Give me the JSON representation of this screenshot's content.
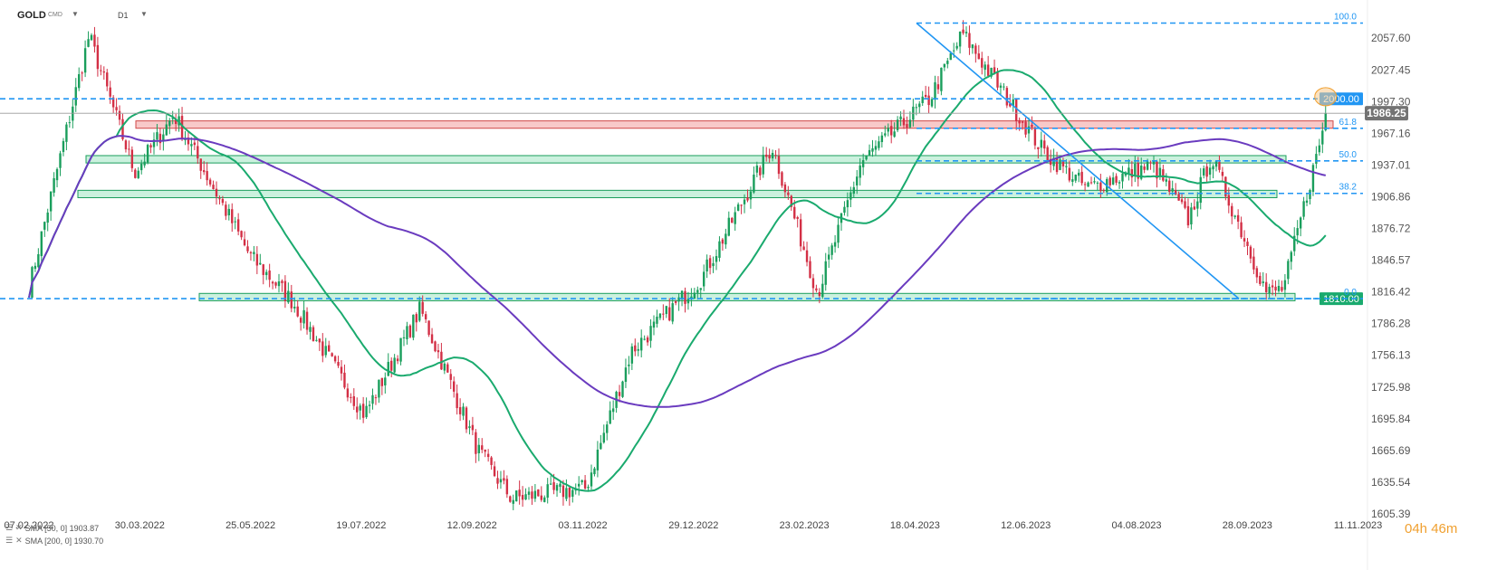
{
  "header": {
    "symbol": "GOLD",
    "symbol_type": "CMD",
    "timeframe": "D1"
  },
  "icons": {
    "symbol_dropdown": "chevron-down-icon",
    "timeframe_dropdown": "chevron-down-icon",
    "indicator_settings": "menu-icon",
    "indicator_remove": "close-icon"
  },
  "indicators": [
    {
      "label": "SMA [50, 0] 1903.87",
      "color": "#1aaa6e"
    },
    {
      "label": "SMA [200, 0] 1930.70",
      "color": "#6a3bbf"
    }
  ],
  "countdown": {
    "hours": "04h",
    "minutes": "46m"
  },
  "colors": {
    "bull": "#1a9e5c",
    "bear": "#d32f45",
    "fib_line": "#2196f3",
    "sma50": "#1aaa6e",
    "sma200": "#6a3bbf",
    "resistance_zone": "#f5b7b7",
    "support_zone": "#b9ecd3",
    "price_tag": "#737373",
    "level_tag_2000": "#2196f3",
    "level_tag_1810": "#1aaa6e"
  },
  "chart_data": {
    "type": "candlestick",
    "symbol": "GOLD",
    "timeframe": "D1",
    "x_ticks": [
      "07.02.2022",
      "30.03.2022",
      "25.05.2022",
      "19.07.2022",
      "12.09.2022",
      "03.11.2022",
      "29.12.2022",
      "23.02.2023",
      "18.04.2023",
      "12.06.2023",
      "04.08.2023",
      "28.09.2023",
      "11.11.2023"
    ],
    "y_ticks": [
      2057.6,
      2027.45,
      1997.3,
      1967.16,
      1937.01,
      1906.86,
      1876.72,
      1846.57,
      1816.42,
      1786.28,
      1756.13,
      1725.98,
      1695.84,
      1665.69,
      1635.54,
      1605.39
    ],
    "ylim": [
      1605.39,
      2075
    ],
    "current_price": 1986.25,
    "price_path": [
      [
        "07.02.2022",
        1820
      ],
      [
        "2022-03-08",
        2060
      ],
      [
        "30.03.2022",
        1930
      ],
      [
        "2022-04-18",
        1985
      ],
      [
        "25.05.2022",
        1850
      ],
      [
        "2022-06-14",
        1808
      ],
      [
        "19.07.2022",
        1700
      ],
      [
        "2022-08-15",
        1800
      ],
      [
        "12.09.2022",
        1665
      ],
      [
        "2022-09-28",
        1620
      ],
      [
        "03.11.2022",
        1630
      ],
      [
        "2022-11-25",
        1760
      ],
      [
        "29.12.2022",
        1830
      ],
      [
        "2023-02-01",
        1955
      ],
      [
        "23.02.2023",
        1815
      ],
      [
        "2023-03-16",
        1940
      ],
      [
        "18.04.2023",
        2000
      ],
      [
        "2023-05-04",
        2062
      ],
      [
        "12.06.2023",
        1950
      ],
      [
        "2023-07-03",
        1915
      ],
      [
        "04.08.2023",
        1937
      ],
      [
        "2023-08-21",
        1885
      ],
      [
        "2023-09-01",
        1945
      ],
      [
        "28.09.2023",
        1815
      ],
      [
        "2023-10-06",
        1820
      ],
      [
        "2023-10-27",
        1986.25
      ]
    ],
    "series": [
      {
        "name": "SMA [50, 0]",
        "last_value": 1903.87
      },
      {
        "name": "SMA [200, 0]",
        "last_value": 1930.7
      }
    ],
    "horizontal_levels": [
      {
        "label": "2000.00",
        "value": 2000.0
      },
      {
        "label": "1810.00",
        "value": 1810.0
      }
    ],
    "fibonacci": {
      "from": 2072,
      "to": 1810,
      "levels": [
        {
          "label": "100.0",
          "ratio": 1.0
        },
        {
          "label": "61.8",
          "ratio": 0.618
        },
        {
          "label": "50.0",
          "ratio": 0.5
        },
        {
          "label": "38.2",
          "ratio": 0.382
        },
        {
          "label": "0.0",
          "ratio": 0.0
        }
      ]
    },
    "zones": [
      {
        "kind": "resistance",
        "from": 1972,
        "to": 1979
      },
      {
        "kind": "support",
        "from": 1939,
        "to": 1946
      },
      {
        "kind": "support",
        "from": 1906,
        "to": 1913
      },
      {
        "kind": "support",
        "from": 1808,
        "to": 1815
      }
    ]
  }
}
